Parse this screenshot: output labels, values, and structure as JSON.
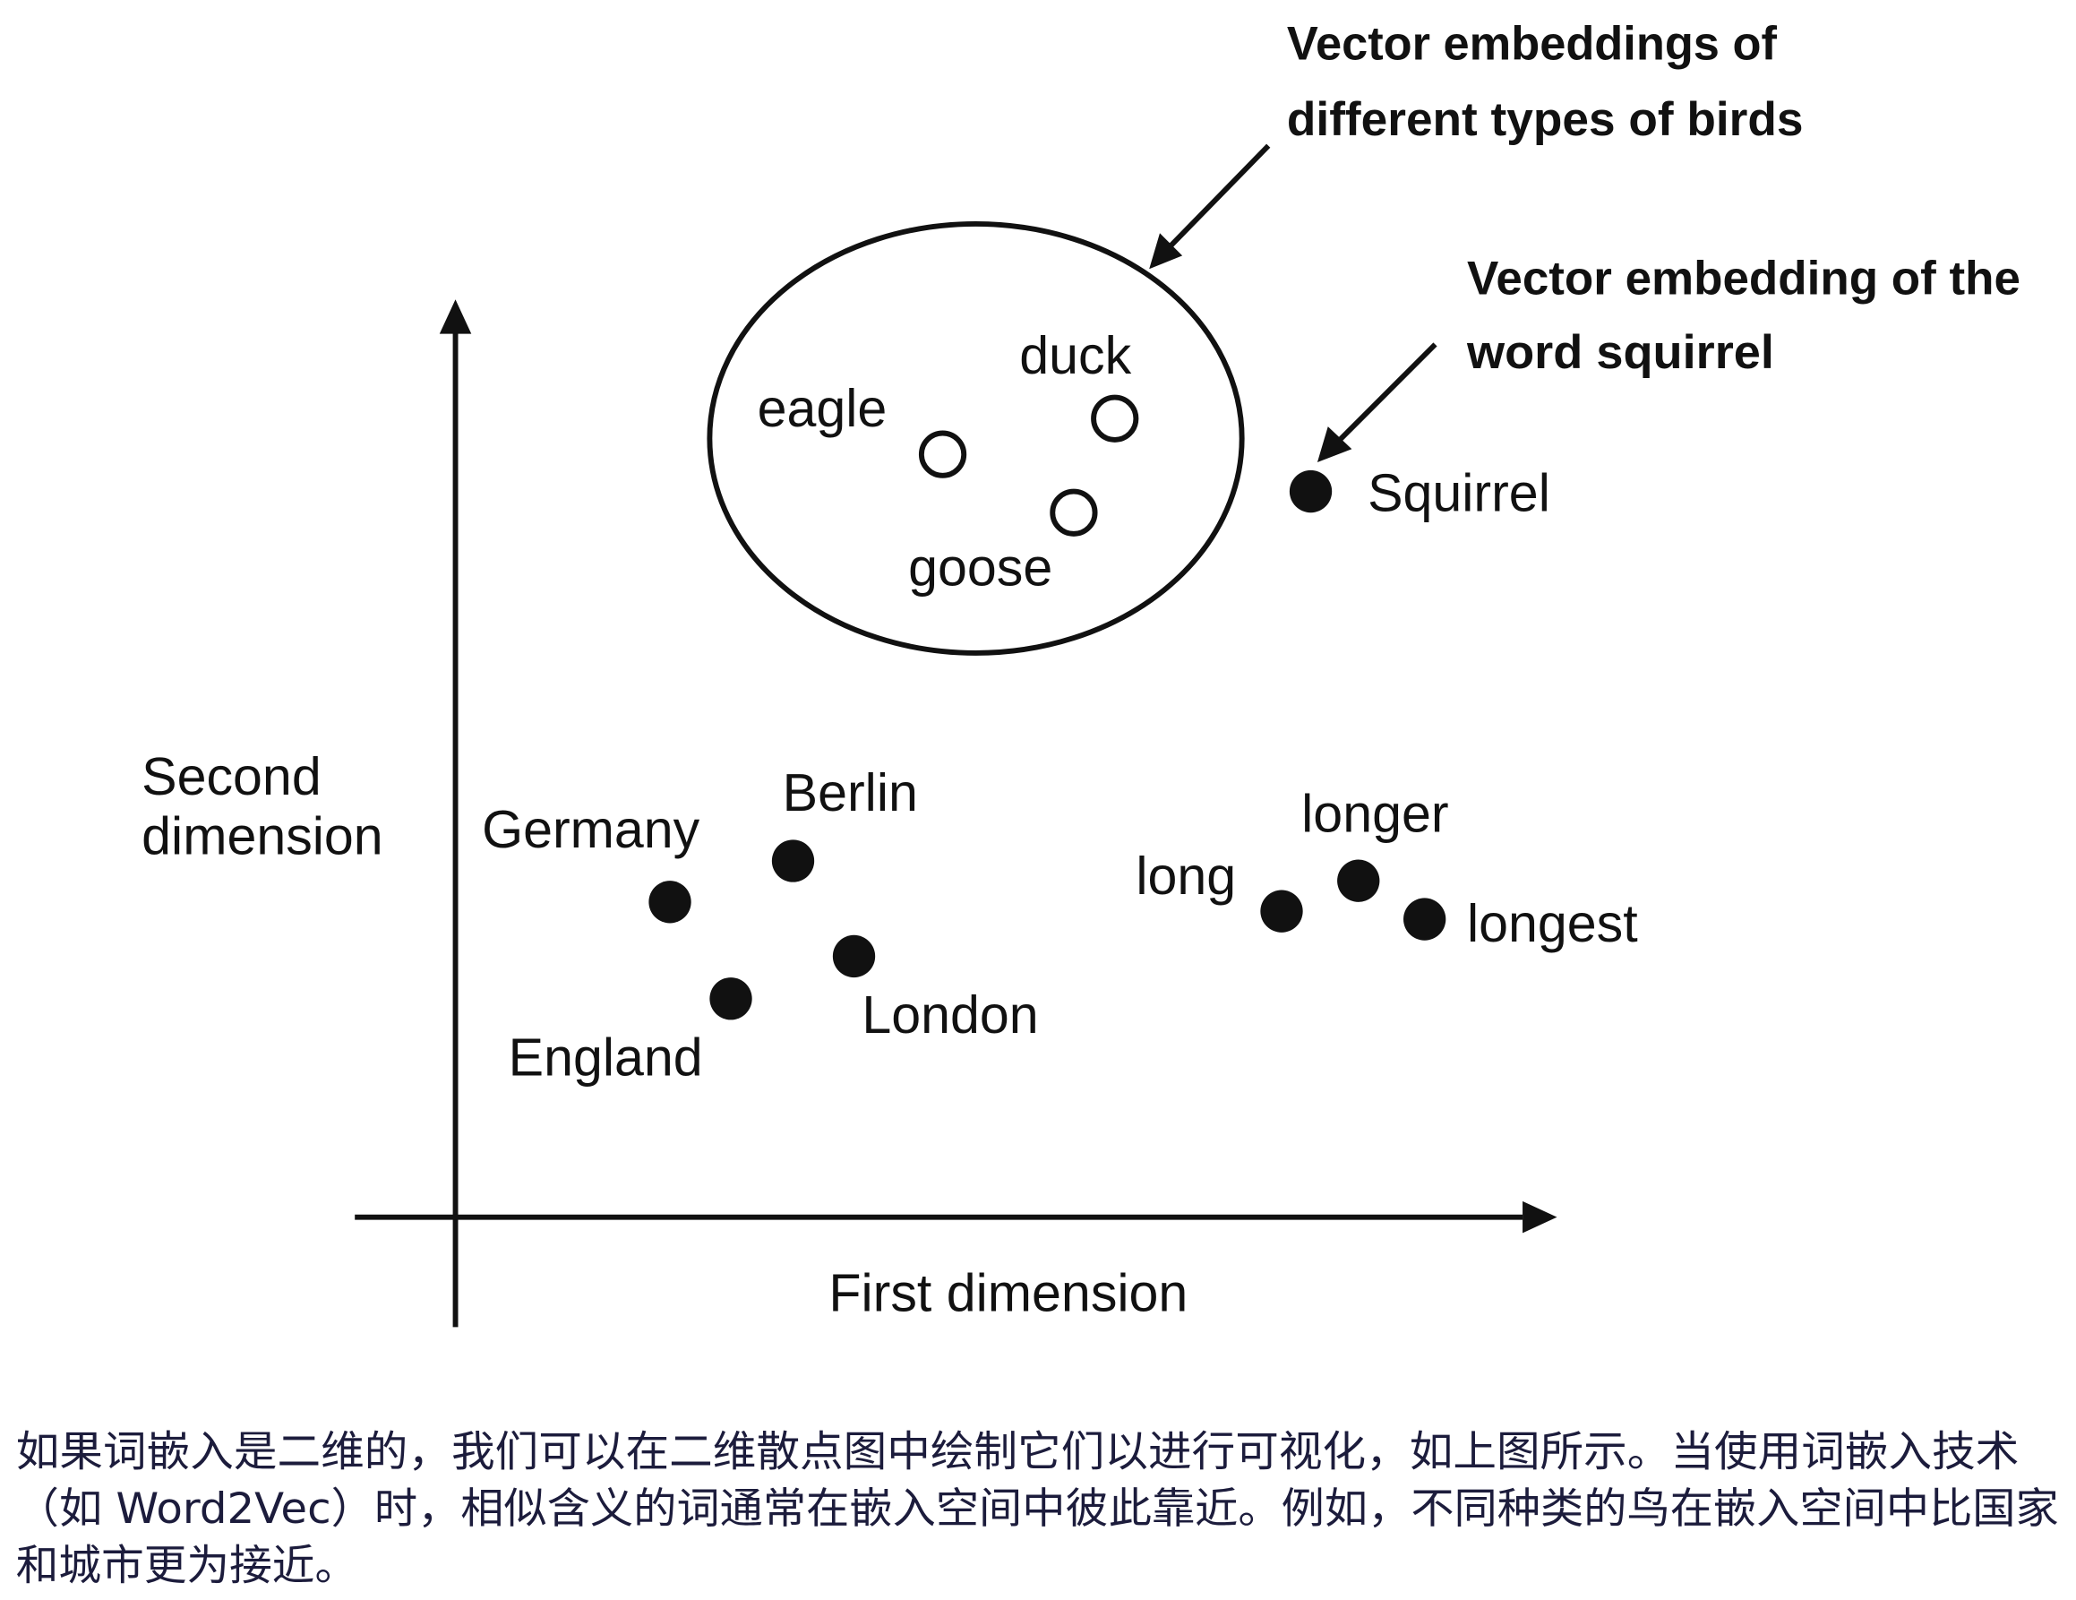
{
  "diagram": {
    "axes": {
      "x_label": "First dimension",
      "y_label_line1": "Second",
      "y_label_line2": "dimension"
    },
    "annotations": {
      "birds_line1": "Vector embeddings of",
      "birds_line2": "different types of birds",
      "squirrel_line1": "Vector embedding of the",
      "squirrel_line2": "word squirrel"
    },
    "points": {
      "eagle": "eagle",
      "duck": "duck",
      "goose": "goose",
      "squirrel": "Squirrel",
      "germany": "Germany",
      "berlin": "Berlin",
      "london": "London",
      "england": "England",
      "long": "long",
      "longer": "longer",
      "longest": "longest"
    },
    "colors": {
      "ink": "#111111",
      "caption": "#1c1c3c",
      "background": "#ffffff"
    }
  },
  "caption": {
    "line1": "如果词嵌入是二维的，我们可以在二维散点图中绘制它们以进行可视化，如上图所示。当使用词嵌入技术",
    "line2": "（如 Word2Vec）时，相似含义的词通常在嵌入空间中彼此靠近。例如，不同种类的鸟在嵌入空间中比国家",
    "line3": "和城市更为接近。"
  }
}
